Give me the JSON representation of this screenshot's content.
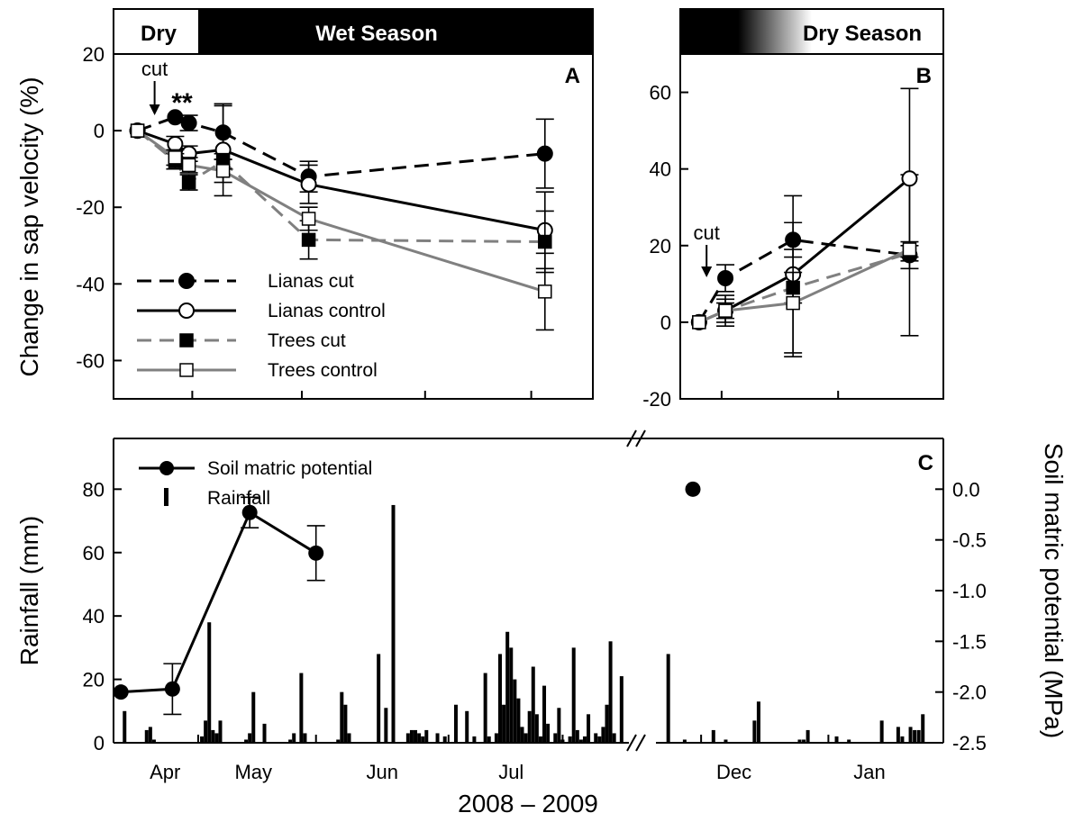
{
  "chart_data": [
    {
      "panel": "A",
      "type": "line",
      "season_labels": [
        "Dry",
        "Wet Season"
      ],
      "ylabel": "Change in sap velocity (%)",
      "ylim": [
        -70,
        20
      ],
      "yticks": [
        20,
        0,
        -20,
        -40,
        -60
      ],
      "x_unit": "days from start of sampling (early April 2008)",
      "x_tick_labels": [
        "Apr",
        "May",
        "Jun",
        "Jul"
      ],
      "x_tick_days": [
        23,
        55,
        91,
        122
      ],
      "x_label_days": [
        14,
        38,
        73,
        108
      ],
      "xlim": [
        0,
        140
      ],
      "cut_day": 12,
      "significance_marks": [
        {
          "day": 20,
          "text": "**"
        }
      ],
      "annotation": "cut",
      "panel_letter": "A",
      "series": [
        {
          "name": "Lianas cut",
          "marker": "filled-circle",
          "line": "dashed",
          "color": "#000000",
          "points": [
            [
              7,
              0,
              0
            ],
            [
              18,
              3.5,
              0
            ],
            [
              22,
              2,
              2
            ],
            [
              32,
              -0.5,
              7
            ],
            [
              57,
              -12,
              4
            ],
            [
              126,
              -6,
              9
            ]
          ]
        },
        {
          "name": "Lianas control",
          "marker": "open-circle",
          "line": "solid",
          "color": "#000000",
          "points": [
            [
              7,
              0,
              0
            ],
            [
              18,
              -3.5,
              2
            ],
            [
              22,
              -6,
              2
            ],
            [
              32,
              -5,
              12
            ],
            [
              57,
              -14,
              5
            ],
            [
              126,
              -26,
              10
            ]
          ]
        },
        {
          "name": "Trees cut",
          "marker": "filled-square",
          "line": "dashed",
          "color": "#808080",
          "points": [
            [
              7,
              0,
              0
            ],
            [
              18,
              -8,
              2
            ],
            [
              22,
              -13.5,
              2
            ],
            [
              32,
              -8,
              2
            ],
            [
              57,
              -28.5,
              5
            ],
            [
              126,
              -29,
              8
            ]
          ]
        },
        {
          "name": "Trees control",
          "marker": "open-square",
          "line": "solid",
          "color": "#808080",
          "points": [
            [
              7,
              0,
              0
            ],
            [
              18,
              -7,
              2
            ],
            [
              22,
              -9,
              2
            ],
            [
              32,
              -10.5,
              3
            ],
            [
              57,
              -23,
              3
            ],
            [
              126,
              -42,
              10
            ]
          ]
        }
      ]
    },
    {
      "panel": "B",
      "type": "line",
      "season_labels": [
        "Dry Season"
      ],
      "ylim": [
        -20,
        70
      ],
      "yticks": [
        60,
        40,
        20,
        0,
        -20
      ],
      "x_unit": "days from 20 November 2008",
      "x_tick_labels": [
        "Dec",
        "Jan"
      ],
      "x_tick_days": [
        11,
        42
      ],
      "xlim": [
        0,
        70
      ],
      "cut_day": 7,
      "annotation": "cut",
      "panel_letter": "B",
      "series": [
        {
          "name": "Lianas cut",
          "points": [
            [
              5,
              0,
              0
            ],
            [
              12,
              11.5,
              3.5
            ],
            [
              30,
              21.5,
              4.5
            ],
            [
              61,
              17.5,
              21
            ]
          ]
        },
        {
          "name": "Lianas control",
          "points": [
            [
              5,
              0,
              0
            ],
            [
              12,
              3,
              4
            ],
            [
              30,
              12.5,
              20.5
            ],
            [
              61,
              37.5,
              23.5
            ]
          ]
        },
        {
          "name": "Trees cut",
          "points": [
            [
              5,
              0,
              0
            ],
            [
              12,
              3,
              2
            ],
            [
              30,
              9,
              4
            ],
            [
              61,
              18,
              2
            ]
          ]
        },
        {
          "name": "Trees control",
          "points": [
            [
              5,
              0,
              0
            ],
            [
              12,
              3,
              3
            ],
            [
              30,
              5,
              14
            ],
            [
              61,
              19,
              2
            ]
          ]
        }
      ]
    },
    {
      "panel": "C",
      "type": "bar",
      "panel_letter": "C",
      "xlabel": "2008 – 2009",
      "ylabel": "Rainfall (mm)",
      "ylabel_right": "Soil matric potential (MPa)",
      "ylim": [
        0,
        96
      ],
      "yticks": [
        0,
        20,
        40,
        60,
        80
      ],
      "ylim_right": [
        -2.5,
        0.5
      ],
      "yticks_right": [
        0.0,
        -0.5,
        -1.0,
        -1.5,
        -2.0,
        -2.5
      ],
      "yticks_right_labels": [
        "0.0",
        "-0.5",
        "-1.0",
        "-1.5",
        "-2.0",
        "-2.5"
      ],
      "x_tick_labels": [
        "Apr",
        "May",
        "Jun",
        "Jul",
        "Dec",
        "Jan"
      ],
      "legend": [
        "Soil matric potential",
        "Rainfall"
      ],
      "segment1": {
        "x_unit": "days from start of sampling (early April 2008)",
        "xlim": [
          0,
          140
        ],
        "tick_days": [
          23,
          55,
          91,
          122
        ],
        "label_days": [
          14,
          38,
          73,
          108
        ],
        "rainfall_days": [
          3,
          9,
          10,
          11,
          24,
          25,
          26,
          27,
          28,
          29,
          36,
          37,
          38,
          41,
          48,
          49,
          51,
          52,
          61,
          62,
          63,
          64,
          72,
          74,
          76,
          80,
          81,
          82,
          83,
          84,
          85,
          88,
          90,
          93,
          96,
          98,
          101,
          102,
          104,
          105,
          106,
          107,
          108,
          109,
          110,
          111,
          112,
          113,
          114,
          115,
          116,
          117,
          118,
          120,
          121,
          122,
          124,
          125,
          126,
          127,
          128,
          129,
          131,
          132,
          133,
          134,
          135,
          136,
          138
        ],
        "rainfall_mm": [
          10,
          4,
          5,
          1,
          2,
          7,
          38,
          4,
          3,
          7,
          1,
          3,
          16,
          6,
          1,
          3,
          22,
          3,
          1,
          16,
          12,
          3,
          28,
          11,
          75,
          3,
          4,
          4,
          3,
          2,
          4,
          3,
          2,
          12,
          10,
          2,
          22,
          2,
          3,
          28,
          12,
          35,
          30,
          20,
          14,
          5,
          3,
          10,
          24,
          9,
          2,
          18,
          6,
          3,
          11,
          1,
          2,
          30,
          4,
          1,
          2,
          9,
          3,
          2,
          5,
          12,
          32,
          3,
          21
        ]
      },
      "segment2": {
        "x_unit": "days from 20 November 2008",
        "xlim": [
          0,
          70
        ],
        "tick_days": [
          11,
          42
        ],
        "label_days": [
          19,
          52
        ],
        "rainfall_days": [
          3,
          7,
          14,
          17,
          24,
          25,
          35,
          36,
          37,
          44,
          47,
          55,
          59,
          60,
          62,
          63,
          64,
          65
        ],
        "rainfall_mm": [
          28,
          1,
          4,
          1,
          7,
          13,
          1,
          1,
          4,
          2,
          1,
          7,
          5,
          2,
          5,
          4,
          4,
          9
        ]
      },
      "soil_matric_potential": [
        {
          "segment": 1,
          "day": 2,
          "mpa": -2.0,
          "err": 0
        },
        {
          "segment": 1,
          "day": 16,
          "mpa": -1.97,
          "err": 0.25
        },
        {
          "segment": 1,
          "day": 37,
          "mpa": -0.23,
          "err": 0.15
        },
        {
          "segment": 1,
          "day": 55,
          "mpa": -0.63,
          "err": 0.27
        },
        {
          "segment": 2,
          "day": 9,
          "mpa": 0.0,
          "err": 0
        }
      ]
    }
  ]
}
